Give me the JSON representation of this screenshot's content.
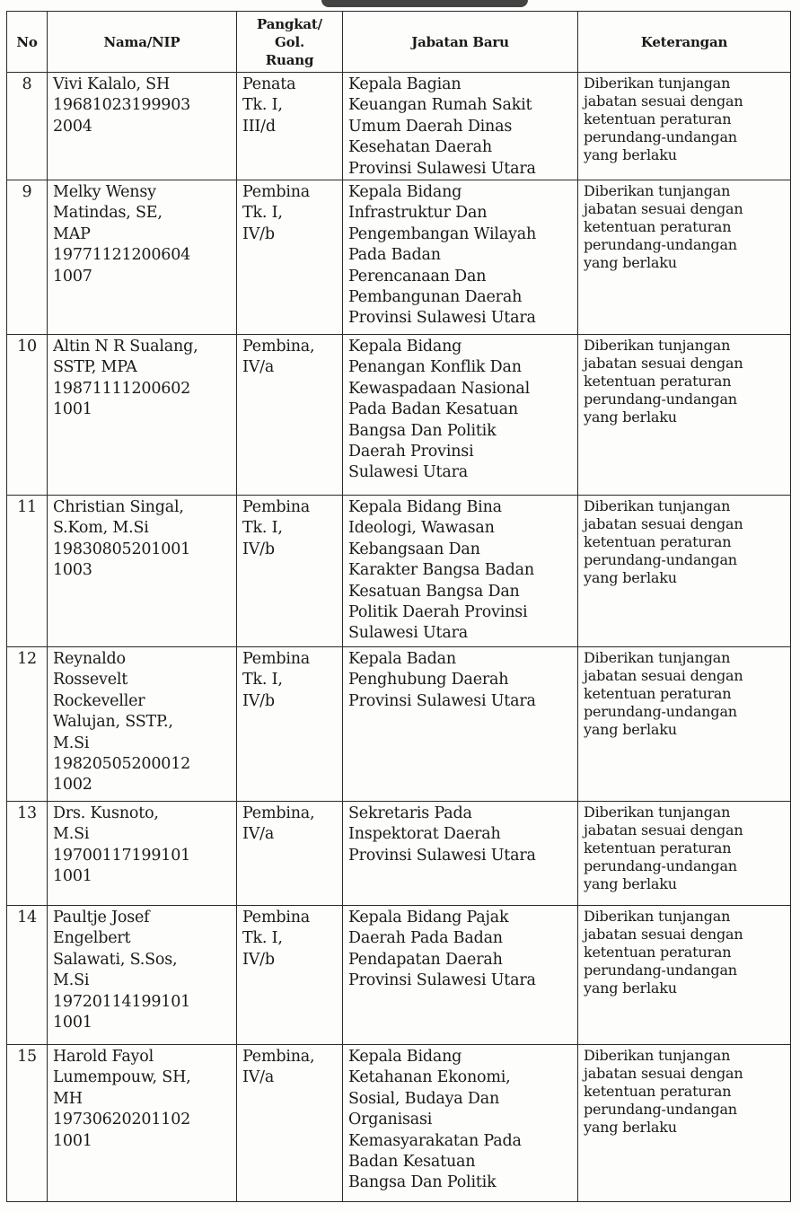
{
  "table": {
    "headers": [
      "No",
      "Nama/NIP",
      "Pangkat/ Gol. Ruang",
      "Jabatan Baru",
      "Keterangan"
    ],
    "header_lines": [
      [
        "No"
      ],
      [
        "Nama/NIP"
      ],
      [
        "Pangkat/",
        "Gol.",
        "Ruang"
      ],
      [
        "Jabatan Baru"
      ],
      [
        "Keterangan"
      ]
    ],
    "rows": [
      {
        "no": "8",
        "nama": [
          "Vivi Kalalo, SH",
          "19681023199903",
          "2004"
        ],
        "pangkat": [
          "Penata",
          "Tk. I,",
          "III/d"
        ],
        "jabatan": [
          "Kepala Bagian",
          "Keuangan Rumah Sakit",
          "Umum Daerah Dinas",
          "Kesehatan Daerah",
          "Provinsi Sulawesi Utara"
        ],
        "keterangan": [
          "Diberikan tunjangan",
          "jabatan sesuai dengan",
          "ketentuan peraturan",
          "perundang-undangan",
          "yang berlaku"
        ]
      },
      {
        "no": "9",
        "nama": [
          "Melky Wensy",
          "Matindas, SE,",
          "MAP",
          "19771121200604",
          "1007"
        ],
        "pangkat": [
          "Pembina",
          "Tk. I,",
          "IV/b"
        ],
        "jabatan": [
          "Kepala Bidang",
          "Infrastruktur Dan",
          "Pengembangan Wilayah",
          "Pada Badan",
          "Perencanaan Dan",
          "Pembangunan Daerah",
          "Provinsi Sulawesi Utara"
        ],
        "keterangan": [
          "Diberikan tunjangan",
          "jabatan sesuai dengan",
          "ketentuan peraturan",
          "perundang-undangan",
          "yang berlaku"
        ]
      },
      {
        "no": "10",
        "nama": [
          "Altin N R Sualang,",
          "SSTP, MPA",
          "19871111200602",
          "1001"
        ],
        "pangkat": [
          "Pembina,",
          "IV/a"
        ],
        "jabatan": [
          "Kepala Bidang",
          "Penangan Konflik Dan",
          "Kewaspadaan Nasional",
          "Pada Badan Kesatuan",
          "Bangsa Dan Politik",
          "Daerah Provinsi",
          "Sulawesi Utara"
        ],
        "keterangan": [
          "Diberikan tunjangan",
          "jabatan sesuai dengan",
          "ketentuan peraturan",
          "perundang-undangan",
          "yang berlaku"
        ]
      },
      {
        "no": "11",
        "nama": [
          "Christian Singal,",
          "S.Kom, M.Si",
          "19830805201001",
          "1003"
        ],
        "pangkat": [
          "Pembina",
          "Tk. I,",
          "IV/b"
        ],
        "jabatan": [
          "Kepala Bidang Bina",
          "Ideologi, Wawasan",
          "Kebangsaan Dan",
          "Karakter Bangsa Badan",
          "Kesatuan Bangsa Dan",
          "Politik Daerah Provinsi",
          "Sulawesi Utara"
        ],
        "keterangan": [
          "Diberikan tunjangan",
          "jabatan sesuai dengan",
          "ketentuan peraturan",
          "perundang-undangan",
          "yang berlaku"
        ]
      },
      {
        "no": "12",
        "nama": [
          "Reynaldo",
          "Rossevelt",
          "Rockeveller",
          "Walujan, SSTP.,",
          "M.Si",
          "19820505200012",
          "1002"
        ],
        "pangkat": [
          "Pembina",
          "Tk. I,",
          "IV/b"
        ],
        "jabatan": [
          "Kepala Badan",
          "Penghubung Daerah",
          "Provinsi Sulawesi Utara"
        ],
        "keterangan": [
          "Diberikan tunjangan",
          "jabatan sesuai dengan",
          "ketentuan peraturan",
          "perundang-undangan",
          "yang berlaku"
        ]
      },
      {
        "no": "13",
        "nama": [
          "Drs. Kusnoto,",
          "M.Si",
          "19700117199101",
          "1001"
        ],
        "pangkat": [
          "Pembina,",
          "IV/a"
        ],
        "jabatan": [
          "Sekretaris Pada",
          "Inspektorat Daerah",
          "Provinsi Sulawesi Utara"
        ],
        "keterangan": [
          "Diberikan tunjangan",
          "jabatan sesuai dengan",
          "ketentuan peraturan",
          "perundang-undangan",
          "yang berlaku"
        ]
      },
      {
        "no": "14",
        "nama": [
          "Paultje Josef",
          "Engelbert",
          "Salawati, S.Sos,",
          "M.Si",
          "19720114199101",
          "1001"
        ],
        "pangkat": [
          "Pembina",
          "Tk. I,",
          "IV/b"
        ],
        "jabatan": [
          "Kepala Bidang Pajak",
          "Daerah Pada Badan",
          "Pendapatan Daerah",
          "Provinsi Sulawesi Utara"
        ],
        "keterangan": [
          "Diberikan tunjangan",
          "jabatan sesuai dengan",
          "ketentuan peraturan",
          "perundang-undangan",
          "yang berlaku"
        ]
      },
      {
        "no": "15",
        "nama": [
          "Harold Fayol",
          "Lumempouw, SH,",
          "MH",
          "19730620201102",
          "1001"
        ],
        "pangkat": [
          "Pembina,",
          "IV/a"
        ],
        "jabatan": [
          "Kepala Bidang",
          "Ketahanan Ekonomi,",
          "Sosial, Budaya Dan",
          "Organisasi",
          "Kemasyarakatan Pada",
          "Badan Kesatuan",
          "Bangsa Dan Politik"
        ],
        "keterangan": [
          "Diberikan tunjangan",
          "jabatan sesuai dengan",
          "ketentuan peraturan",
          "perundang-undangan",
          "yang berlaku"
        ]
      }
    ]
  }
}
